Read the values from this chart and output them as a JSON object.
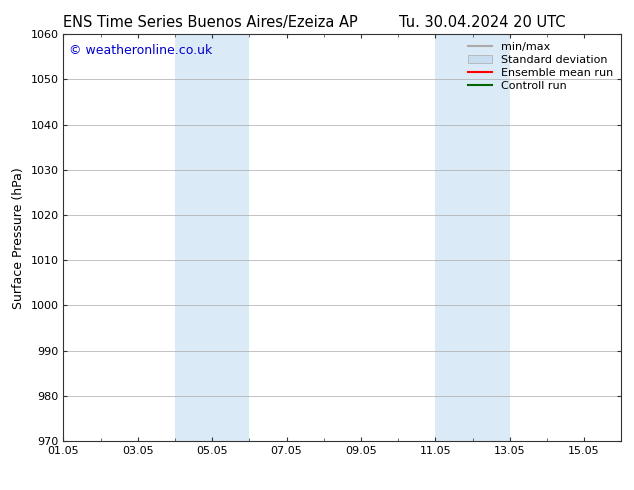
{
  "title_left": "ENS Time Series Buenos Aires/Ezeiza AP",
  "title_right": "Tu. 30.04.2024 20 UTC",
  "ylabel": "Surface Pressure (hPa)",
  "ylim": [
    970,
    1060
  ],
  "yticks": [
    970,
    980,
    990,
    1000,
    1010,
    1020,
    1030,
    1040,
    1050,
    1060
  ],
  "xtick_labels": [
    "01.05",
    "03.05",
    "05.05",
    "07.05",
    "09.05",
    "11.05",
    "13.05",
    "15.05"
  ],
  "xtick_positions": [
    0,
    2,
    4,
    6,
    8,
    10,
    12,
    14
  ],
  "xlim": [
    0,
    15
  ],
  "shaded_bands": [
    {
      "x_start": 3.0,
      "x_end": 5.0,
      "color": "#daeaf6"
    },
    {
      "x_start": 10.0,
      "x_end": 12.0,
      "color": "#daeaf6"
    }
  ],
  "copyright_text": "© weatheronline.co.uk",
  "copyright_color": "#0000cc",
  "legend_items": [
    {
      "label": "min/max",
      "color": "#aaaaaa",
      "lw": 1.5,
      "style": "line"
    },
    {
      "label": "Standard deviation",
      "color": "#c8ddef",
      "lw": 8,
      "style": "bar"
    },
    {
      "label": "Ensemble mean run",
      "color": "#ff0000",
      "lw": 1.5,
      "style": "line"
    },
    {
      "label": "Controll run",
      "color": "#006600",
      "lw": 1.5,
      "style": "line"
    }
  ],
  "bg_color": "#ffffff",
  "grid_color": "#aaaaaa",
  "title_fontsize": 10.5,
  "axis_label_fontsize": 9,
  "tick_fontsize": 8,
  "legend_fontsize": 8,
  "copyright_fontsize": 9
}
